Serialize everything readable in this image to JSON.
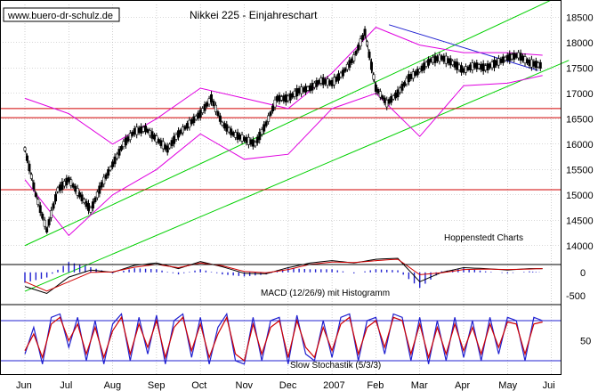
{
  "header": {
    "url": "www.buero-dr-schulz.de",
    "title": "Nikkei 225 - Einjahreschart",
    "source": "Hoppenstedt Charts"
  },
  "colors": {
    "candle": "#000000",
    "bollinger": "#e000e0",
    "channel": "#00d000",
    "support": "#d00000",
    "trendline": "#2020d0",
    "macd": "#000000",
    "signal": "#d00000",
    "histogram": "#2020d0",
    "stoch_k": "#2020d0",
    "stoch_d": "#d00000",
    "grid": "#b0b0b0"
  },
  "chart_data": [
    {
      "type": "line",
      "panel": "price",
      "title": "Nikkei 225 - Einjahreschart",
      "y_ticks": [
        14000,
        14500,
        15000,
        15500,
        16000,
        16500,
        17000,
        17500,
        18000,
        18500
      ],
      "ylim": [
        13750,
        18750
      ],
      "grid": "on",
      "x_ticks": [
        "Jun",
        "Jul",
        "Aug",
        "Sep",
        "Oct",
        "Nov",
        "Dec",
        "2007",
        "Feb",
        "Mar",
        "Apr",
        "May",
        "Jui"
      ],
      "x_month_index": [
        0,
        1,
        2,
        3,
        4,
        5,
        6,
        7,
        8,
        9,
        10,
        11,
        12
      ],
      "series": [
        {
          "style": "candles",
          "x": [
            0.0,
            0.25,
            0.5,
            0.75,
            1.0,
            1.25,
            1.5,
            1.75,
            2.0,
            2.25,
            2.5,
            2.75,
            3.0,
            3.25,
            3.5,
            3.75,
            4.0,
            4.25,
            4.5,
            4.75,
            5.0,
            5.25,
            5.5,
            5.75,
            6.0,
            6.25,
            6.5,
            6.75,
            7.0,
            7.25,
            7.5,
            7.75,
            8.0,
            8.25,
            8.5,
            8.75,
            9.0,
            9.25,
            9.5,
            9.75,
            10.0,
            10.25,
            10.5,
            10.75,
            11.0,
            11.25,
            11.5,
            11.75
          ],
          "close": [
            15900,
            15000,
            14300,
            15100,
            15300,
            15000,
            14700,
            15200,
            15600,
            16000,
            16250,
            16300,
            16100,
            15900,
            16200,
            16400,
            16600,
            16900,
            16400,
            16200,
            16100,
            16000,
            16400,
            16900,
            16900,
            17050,
            17100,
            17250,
            17200,
            17400,
            17700,
            18200,
            17100,
            16800,
            17000,
            17300,
            17450,
            17650,
            17700,
            17600,
            17450,
            17550,
            17500,
            17600,
            17700,
            17750,
            17600,
            17550
          ]
        },
        {
          "name": "",
          "style": "bollinger-upper",
          "x": [
            0,
            1,
            2,
            3,
            4,
            5,
            6,
            7,
            8,
            9,
            10,
            11,
            11.8
          ],
          "values": [
            16900,
            16600,
            16000,
            16500,
            17100,
            16900,
            16700,
            17400,
            18300,
            17950,
            17800,
            17800,
            17750
          ]
        },
        {
          "name": "",
          "style": "bollinger-lower",
          "x": [
            0,
            1,
            2,
            3,
            4,
            5,
            6,
            7,
            8,
            9,
            10,
            11,
            11.8
          ],
          "values": [
            15300,
            14200,
            15000,
            15500,
            16200,
            15700,
            15800,
            16700,
            17000,
            16150,
            17150,
            17200,
            17350
          ]
        }
      ],
      "lines": [
        {
          "style": "channel",
          "x": [
            0,
            12.4
          ],
          "values": [
            14000,
            19000
          ]
        },
        {
          "style": "channel",
          "x": [
            0,
            12.4
          ],
          "values": [
            13100,
            17650
          ]
        },
        {
          "style": "support",
          "values": [
            16700
          ]
        },
        {
          "style": "support",
          "values": [
            16520
          ]
        },
        {
          "style": "support",
          "values": [
            15100
          ]
        },
        {
          "style": "trendline",
          "x": [
            8.3,
            11.7
          ],
          "values": [
            18350,
            17450
          ]
        }
      ],
      "annotations": [
        "Hoppenstedt Charts"
      ]
    },
    {
      "type": "line",
      "panel": "macd",
      "title": "MACD (12/26/9) mit Histogramm",
      "y_ticks": [
        -500,
        0
      ],
      "ylim": [
        -650,
        300
      ],
      "x": [
        0,
        0.5,
        1,
        1.5,
        2,
        2.5,
        3,
        3.5,
        4,
        4.5,
        5,
        5.5,
        6,
        6.5,
        7,
        7.5,
        8,
        8.5,
        9,
        9.5,
        10,
        10.5,
        11,
        11.5,
        11.8
      ],
      "series": [
        {
          "name": "MACD",
          "values": [
            -300,
            -450,
            -100,
            50,
            0,
            150,
            200,
            80,
            230,
            120,
            -20,
            -30,
            100,
            200,
            250,
            200,
            280,
            300,
            -200,
            0,
            100,
            80,
            50,
            80,
            80
          ]
        },
        {
          "name": "Signal",
          "values": [
            -200,
            -400,
            -200,
            0,
            10,
            110,
            170,
            100,
            200,
            140,
            20,
            -10,
            60,
            170,
            220,
            210,
            250,
            280,
            -50,
            -10,
            60,
            70,
            60,
            70,
            80
          ]
        }
      ]
    },
    {
      "type": "line",
      "panel": "stochastic",
      "title": "Slow Stochastik (5/3/3)",
      "y_ticks": [
        50
      ],
      "ylim": [
        0,
        100
      ],
      "reference_lines": [
        20,
        80
      ],
      "x": [
        0,
        0.2,
        0.4,
        0.6,
        0.8,
        1,
        1.2,
        1.4,
        1.6,
        1.8,
        2,
        2.2,
        2.4,
        2.6,
        2.8,
        3,
        3.2,
        3.4,
        3.6,
        3.8,
        4,
        4.2,
        4.4,
        4.6,
        4.8,
        5,
        5.2,
        5.4,
        5.6,
        5.8,
        6,
        6.2,
        6.4,
        6.6,
        6.8,
        7,
        7.2,
        7.4,
        7.6,
        7.8,
        8,
        8.2,
        8.4,
        8.6,
        8.8,
        9,
        9.2,
        9.4,
        9.6,
        9.8,
        10,
        10.2,
        10.4,
        10.6,
        10.8,
        11,
        11.2,
        11.4,
        11.6,
        11.8
      ],
      "series": [
        {
          "name": "%K",
          "values": [
            30,
            70,
            15,
            85,
            90,
            40,
            85,
            20,
            80,
            15,
            75,
            90,
            20,
            85,
            30,
            88,
            15,
            80,
            90,
            25,
            85,
            15,
            70,
            90,
            20,
            15,
            85,
            20,
            80,
            85,
            15,
            88,
            30,
            20,
            80,
            25,
            85,
            90,
            20,
            80,
            85,
            30,
            90,
            85,
            20,
            85,
            15,
            80,
            20,
            85,
            25,
            80,
            20,
            85,
            30,
            85,
            80,
            20,
            85,
            80
          ]
        },
        {
          "name": "%D",
          "values": [
            35,
            60,
            25,
            75,
            85,
            50,
            75,
            30,
            70,
            25,
            65,
            85,
            30,
            75,
            40,
            80,
            25,
            70,
            85,
            35,
            75,
            25,
            60,
            85,
            30,
            20,
            75,
            30,
            70,
            80,
            25,
            80,
            40,
            25,
            70,
            35,
            75,
            85,
            30,
            70,
            80,
            40,
            85,
            80,
            30,
            75,
            25,
            70,
            30,
            75,
            35,
            70,
            30,
            75,
            40,
            78,
            75,
            30,
            75,
            78
          ]
        }
      ]
    }
  ]
}
